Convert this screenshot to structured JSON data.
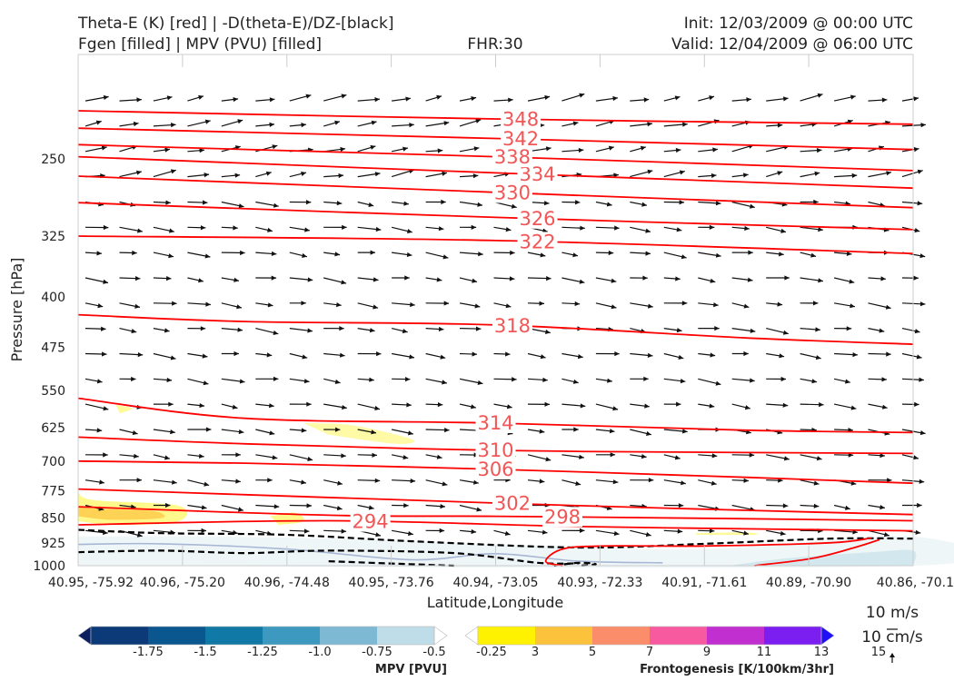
{
  "header": {
    "title_left_1": "Theta-E (K) [red] | -D(theta-E)/DZ-[black]",
    "title_left_2": "Fgen [filled] | MPV (PVU) [filled]",
    "fhr": "FHR:30",
    "init": "Init: 12/03/2009 @ 00:00 UTC",
    "valid": "Valid: 12/04/2009 @ 06:00 UTC"
  },
  "chart_data": {
    "type": "cross-section",
    "xlabel": "Latitude,Longitude",
    "ylabel": "Pressure [hPa]",
    "ylim": [
      1000,
      175
    ],
    "y_scale": "log",
    "y_ticks": [
      250,
      325,
      400,
      475,
      550,
      625,
      700,
      775,
      850,
      925,
      1000
    ],
    "x_ticks": [
      "40.95, -75.92",
      "40.96, -75.20",
      "40.96, -74.48",
      "40.95, -73.76",
      "40.94, -73.05",
      "40.93, -72.33",
      "40.91, -71.61",
      "40.89, -70.90",
      "40.86, -70.1"
    ],
    "theta_e_contours": [
      {
        "label": "294",
        "color": "#ff0000",
        "points": [
          [
            0,
            870
          ],
          [
            0.3,
            858
          ],
          [
            0.6,
            875
          ],
          [
            0.9,
            885
          ],
          [
            1.0,
            888
          ]
        ]
      },
      {
        "label": "298",
        "color": "#ff0000",
        "points": [
          [
            0,
            818
          ],
          [
            0.3,
            842
          ],
          [
            0.5,
            845
          ],
          [
            0.8,
            852
          ],
          [
            1.0,
            858
          ]
        ]
      },
      {
        "label": "302",
        "color": "#ff0000",
        "points": [
          [
            0,
            770
          ],
          [
            0.2,
            785
          ],
          [
            0.4,
            800
          ],
          [
            0.6,
            815
          ],
          [
            0.8,
            828
          ],
          [
            1.0,
            840
          ]
        ]
      },
      {
        "label": "306",
        "color": "#ff0000",
        "points": [
          [
            0,
            700
          ],
          [
            0.2,
            705
          ],
          [
            0.5,
            720
          ],
          [
            0.8,
            740
          ],
          [
            1.0,
            755
          ]
        ]
      },
      {
        "label": "310",
        "color": "#ff0000",
        "points": [
          [
            0,
            645
          ],
          [
            0.2,
            660
          ],
          [
            0.5,
            675
          ],
          [
            0.8,
            680
          ],
          [
            1.0,
            682
          ]
        ]
      },
      {
        "label": "314",
        "color": "#ff0000",
        "points": [
          [
            0,
            565
          ],
          [
            0.2,
            605
          ],
          [
            0.5,
            615
          ],
          [
            0.8,
            630
          ],
          [
            1.0,
            635
          ]
        ]
      },
      {
        "label": "318",
        "color": "#ff0000",
        "points": [
          [
            0,
            425
          ],
          [
            0.2,
            435
          ],
          [
            0.5,
            440
          ],
          [
            0.8,
            460
          ],
          [
            1.0,
            470
          ]
        ]
      },
      {
        "label": "322",
        "color": "#ff0000",
        "points": [
          [
            0,
            325
          ],
          [
            0.5,
            330
          ],
          [
            1.0,
            345
          ]
        ]
      },
      {
        "label": "326",
        "color": "#ff0000",
        "points": [
          [
            0,
            290
          ],
          [
            0.5,
            305
          ],
          [
            1.0,
            318
          ]
        ]
      },
      {
        "label": "330",
        "color": "#ff0000",
        "points": [
          [
            0,
            265
          ],
          [
            0.5,
            280
          ],
          [
            1.0,
            295
          ]
        ]
      },
      {
        "label": "334",
        "color": "#ff0000",
        "points": [
          [
            0,
            248
          ],
          [
            0.5,
            262
          ],
          [
            1.0,
            276
          ]
        ]
      },
      {
        "label": "338",
        "color": "#ff0000",
        "points": [
          [
            0,
            238
          ],
          [
            0.5,
            248
          ],
          [
            1.0,
            260
          ]
        ]
      },
      {
        "label": "342",
        "color": "#ff0000",
        "points": [
          [
            0,
            225
          ],
          [
            0.5,
            233
          ],
          [
            1.0,
            242
          ]
        ]
      },
      {
        "label": "348",
        "color": "#ff0000",
        "points": [
          [
            0,
            212
          ],
          [
            0.5,
            218
          ],
          [
            1.0,
            222
          ]
        ]
      }
    ],
    "stability_contour_color": "#000000",
    "wind_vectors": "uniform eastward flow, ~10 m/s scale",
    "mpv_colorbar": {
      "title": "MPV [PVU]",
      "ticks": [
        "-1.75",
        "-1.5",
        "-1.25",
        "-1.0",
        "-0.75",
        "-0.5",
        "-0.25"
      ],
      "colors": [
        "#0b1e5e",
        "#0c3a78",
        "#0a568f",
        "#1079a6",
        "#3d99bf",
        "#7eb9d4",
        "#bfdde8",
        "#ffffff"
      ]
    },
    "fgen_colorbar": {
      "title": "Frontogenesis [K/100km/3hr]",
      "ticks": [
        "3",
        "5",
        "7",
        "9",
        "11",
        "13",
        "15"
      ],
      "colors": [
        "#ffffff",
        "#fff200",
        "#fdc23c",
        "#fb8d6b",
        "#f85aa0",
        "#c22fd0",
        "#7b1ff0",
        "#1f10f5"
      ]
    },
    "wind_key": {
      "horizontal": "10 m/s",
      "vertical": "10 cm/s"
    }
  }
}
